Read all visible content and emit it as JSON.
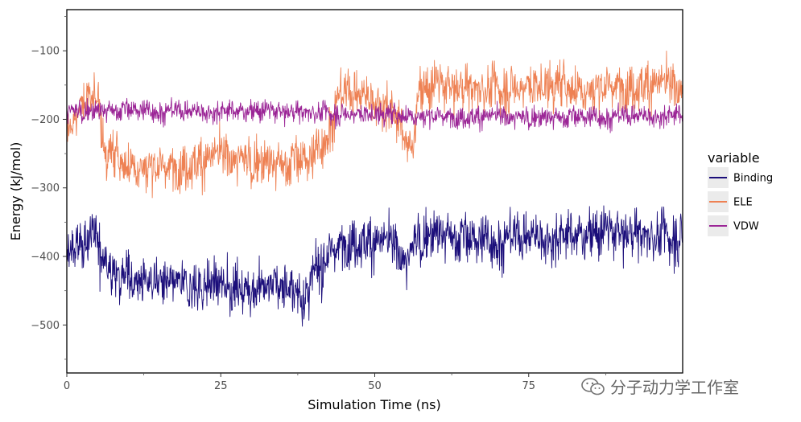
{
  "chart_data": {
    "type": "line",
    "title": "",
    "xlabel": "Simulation Time (ns)",
    "ylabel": "Energy (kJ/mol)",
    "xlim": [
      0,
      100
    ],
    "ylim": [
      -570,
      -40
    ],
    "xticks": [
      0,
      25,
      50,
      75
    ],
    "yticks": [
      -100,
      -200,
      -300,
      -400,
      -500
    ],
    "xtick_labels": [
      "0",
      "25",
      "50",
      "75"
    ],
    "ytick_labels": [
      "−100",
      "−200",
      "−300",
      "−400",
      "−500"
    ],
    "legend": {
      "title": "variable",
      "position": "right"
    },
    "series": [
      {
        "name": "Binding",
        "color": "#1b0e7a",
        "noise_amplitude": 42,
        "x": [
          0,
          3,
          5,
          6.5,
          10,
          15,
          20,
          25,
          30,
          35,
          39,
          41,
          44,
          46,
          50,
          53,
          55.5,
          56.5,
          60,
          65,
          70,
          75,
          80,
          85,
          90,
          95,
          100
        ],
        "mean": [
          -395,
          -380,
          -365,
          -420,
          -430,
          -440,
          -445,
          -440,
          -450,
          -440,
          -455,
          -410,
          -385,
          -375,
          -380,
          -385,
          -410,
          -375,
          -365,
          -375,
          -375,
          -370,
          -370,
          -365,
          -365,
          -370,
          -370
        ]
      },
      {
        "name": "ELE",
        "color": "#ee8153",
        "noise_amplitude": 40,
        "x": [
          0,
          3,
          5,
          6,
          10,
          15,
          20,
          25,
          30,
          35,
          40,
          42,
          44,
          46,
          50,
          52,
          55,
          56,
          57,
          60,
          65,
          70,
          75,
          80,
          85,
          90,
          95,
          100
        ],
        "mean": [
          -215,
          -170,
          -160,
          -245,
          -265,
          -270,
          -265,
          -255,
          -260,
          -265,
          -255,
          -225,
          -170,
          -160,
          -170,
          -175,
          -225,
          -250,
          -160,
          -150,
          -155,
          -155,
          -150,
          -150,
          -155,
          -150,
          -150,
          -155
        ]
      },
      {
        "name": "VDW",
        "color": "#9b2596",
        "noise_amplitude": 18,
        "x": [
          0,
          10,
          20,
          30,
          40,
          50,
          60,
          70,
          80,
          90,
          100
        ],
        "mean": [
          -188,
          -186,
          -188,
          -187,
          -190,
          -192,
          -195,
          -197,
          -197,
          -195,
          -193
        ]
      }
    ]
  },
  "watermark": {
    "icon": "wechat-icon",
    "text": "分子动力学工作室"
  }
}
